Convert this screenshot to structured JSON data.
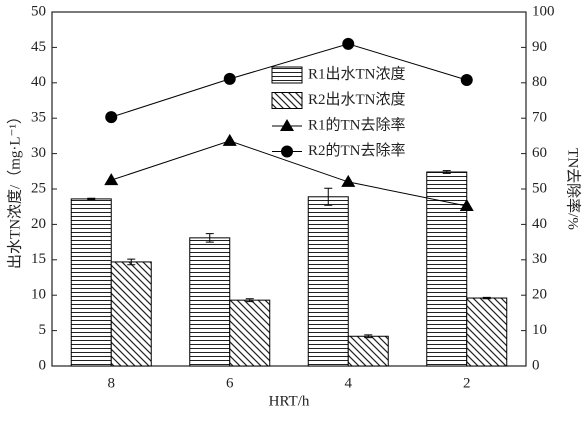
{
  "chart_data": {
    "type": "bar-line",
    "xlabel": "HRT/h",
    "ylabel": "出水TN浓度/（mg·L⁻¹）",
    "y2label": "TN去除率/%",
    "categories": [
      "8",
      "6",
      "4",
      "2"
    ],
    "ylim": [
      0,
      50
    ],
    "yticks": [
      0,
      5,
      10,
      15,
      20,
      25,
      30,
      35,
      40,
      45,
      50
    ],
    "y2lim": [
      0,
      100
    ],
    "y2ticks": [
      0,
      10,
      20,
      30,
      40,
      50,
      60,
      70,
      80,
      90,
      100
    ],
    "series": [
      {
        "name": "R1出水TN浓度",
        "kind": "bar",
        "hatch": "horizontal",
        "color": "#000000",
        "values": [
          23.6,
          18.1,
          23.9,
          27.4
        ],
        "errors": [
          0.1,
          0.6,
          1.2,
          0.2
        ]
      },
      {
        "name": "R2出水TN浓度",
        "kind": "bar",
        "hatch": "diagonal",
        "color": "#000000",
        "values": [
          14.7,
          9.3,
          4.2,
          9.6
        ],
        "errors": [
          0.4,
          0.2,
          0.2,
          0.1
        ]
      },
      {
        "name": "R1的TN去除率",
        "kind": "line",
        "marker": "triangle",
        "axis": "y2",
        "color": "#000000",
        "values": [
          52.5,
          63.6,
          52,
          45.2
        ]
      },
      {
        "name": "R2的TN去除率",
        "kind": "line",
        "marker": "circle",
        "axis": "y2",
        "color": "#000000",
        "values": [
          70.3,
          81.1,
          91,
          80.8
        ]
      }
    ]
  }
}
